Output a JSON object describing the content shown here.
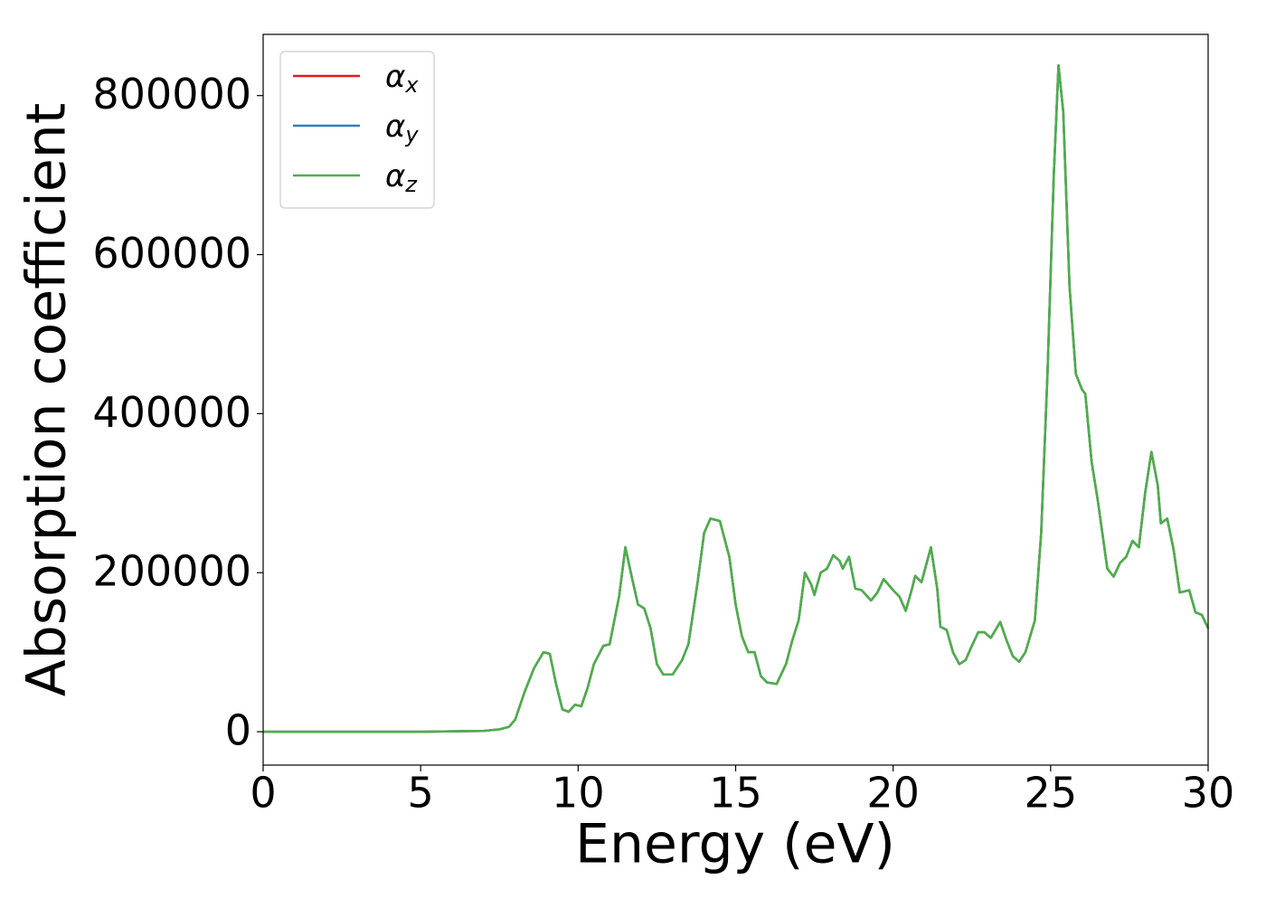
{
  "chart_data": {
    "type": "line",
    "x_label": "Energy (eV)",
    "y_label": "Absorption coefficient",
    "x": [
      0,
      5,
      7,
      7.5,
      7.8,
      8,
      8.3,
      8.6,
      8.9,
      9.1,
      9.3,
      9.5,
      9.7,
      9.9,
      10.1,
      10.3,
      10.5,
      10.8,
      11,
      11.2,
      11.3,
      11.5,
      11.7,
      11.9,
      12.1,
      12.3,
      12.5,
      12.7,
      13,
      13.3,
      13.5,
      13.8,
      14,
      14.2,
      14.5,
      14.8,
      15,
      15.2,
      15.4,
      15.6,
      15.8,
      16,
      16.3,
      16.6,
      16.8,
      17,
      17.2,
      17.4,
      17.5,
      17.7,
      17.9,
      18.1,
      18.3,
      18.4,
      18.6,
      18.8,
      19,
      19.3,
      19.5,
      19.7,
      20,
      20.2,
      20.4,
      20.6,
      20.7,
      20.9,
      21.2,
      21.4,
      21.5,
      21.7,
      21.9,
      22.1,
      22.3,
      22.5,
      22.7,
      22.9,
      23.1,
      23.4,
      23.6,
      23.8,
      24,
      24.2,
      24.5,
      24.7,
      24.9,
      25.1,
      25.25,
      25.4,
      25.6,
      25.8,
      26,
      26.1,
      26.3,
      26.5,
      26.8,
      27,
      27.2,
      27.4,
      27.6,
      27.8,
      28,
      28.2,
      28.4,
      28.5,
      28.7,
      28.9,
      29.1,
      29.4,
      29.6,
      29.8,
      30
    ],
    "series": [
      {
        "name": "αx",
        "color": "#e41a1c",
        "values": [
          0,
          0,
          1000,
          3000,
          6000,
          15000,
          50000,
          80000,
          100000,
          98000,
          60000,
          28000,
          25000,
          34000,
          32000,
          55000,
          85000,
          108000,
          110000,
          150000,
          170000,
          232000,
          195000,
          160000,
          155000,
          130000,
          85000,
          72000,
          72000,
          90000,
          110000,
          190000,
          250000,
          268000,
          265000,
          220000,
          160000,
          120000,
          100000,
          100000,
          70000,
          62000,
          60000,
          85000,
          115000,
          140000,
          200000,
          185000,
          172000,
          200000,
          205000,
          222000,
          215000,
          205000,
          220000,
          180000,
          178000,
          165000,
          175000,
          192000,
          178000,
          170000,
          152000,
          180000,
          196000,
          188000,
          232000,
          180000,
          132000,
          128000,
          100000,
          85000,
          90000,
          108000,
          125000,
          125000,
          118000,
          138000,
          115000,
          95000,
          88000,
          100000,
          140000,
          250000,
          450000,
          700000,
          838000,
          780000,
          560000,
          450000,
          430000,
          425000,
          340000,
          290000,
          205000,
          195000,
          212000,
          220000,
          240000,
          232000,
          300000,
          352000,
          310000,
          262000,
          268000,
          230000,
          175000,
          178000,
          150000,
          147000,
          130000
        ]
      },
      {
        "name": "αy",
        "color": "#377eb8",
        "values": [
          0,
          0,
          1000,
          3000,
          6000,
          15000,
          50000,
          80000,
          100000,
          98000,
          60000,
          28000,
          25000,
          34000,
          32000,
          55000,
          85000,
          108000,
          110000,
          150000,
          170000,
          232000,
          195000,
          160000,
          155000,
          130000,
          85000,
          72000,
          72000,
          90000,
          110000,
          190000,
          250000,
          268000,
          265000,
          220000,
          160000,
          120000,
          100000,
          100000,
          70000,
          62000,
          60000,
          85000,
          115000,
          140000,
          200000,
          185000,
          172000,
          200000,
          205000,
          222000,
          215000,
          205000,
          220000,
          180000,
          178000,
          165000,
          175000,
          192000,
          178000,
          170000,
          152000,
          180000,
          196000,
          188000,
          232000,
          180000,
          132000,
          128000,
          100000,
          85000,
          90000,
          108000,
          125000,
          125000,
          118000,
          138000,
          115000,
          95000,
          88000,
          100000,
          140000,
          250000,
          450000,
          700000,
          838000,
          780000,
          560000,
          450000,
          430000,
          425000,
          340000,
          290000,
          205000,
          195000,
          212000,
          220000,
          240000,
          232000,
          300000,
          352000,
          310000,
          262000,
          268000,
          230000,
          175000,
          178000,
          150000,
          147000,
          130000
        ]
      },
      {
        "name": "αz",
        "color": "#4daf4a",
        "values": [
          0,
          0,
          1000,
          3000,
          6000,
          15000,
          50000,
          80000,
          100000,
          98000,
          60000,
          28000,
          25000,
          34000,
          32000,
          55000,
          85000,
          108000,
          110000,
          150000,
          170000,
          232000,
          195000,
          160000,
          155000,
          130000,
          85000,
          72000,
          72000,
          90000,
          110000,
          190000,
          250000,
          268000,
          265000,
          220000,
          160000,
          120000,
          100000,
          100000,
          70000,
          62000,
          60000,
          85000,
          115000,
          140000,
          200000,
          185000,
          172000,
          200000,
          205000,
          222000,
          215000,
          205000,
          220000,
          180000,
          178000,
          165000,
          175000,
          192000,
          178000,
          170000,
          152000,
          180000,
          196000,
          188000,
          232000,
          180000,
          132000,
          128000,
          100000,
          85000,
          90000,
          108000,
          125000,
          125000,
          118000,
          138000,
          115000,
          95000,
          88000,
          100000,
          140000,
          250000,
          450000,
          700000,
          838000,
          780000,
          560000,
          450000,
          430000,
          425000,
          340000,
          290000,
          205000,
          195000,
          212000,
          220000,
          240000,
          232000,
          300000,
          352000,
          310000,
          262000,
          268000,
          230000,
          175000,
          178000,
          150000,
          147000,
          130000
        ]
      }
    ],
    "xlim": [
      0,
      30
    ],
    "xticks": [
      0,
      5,
      10,
      15,
      20,
      25,
      30
    ],
    "ylim": [
      -42000,
      877000
    ],
    "yticks": [
      0,
      200000,
      400000,
      600000,
      800000
    ],
    "grid": false,
    "legend": "upper left"
  }
}
